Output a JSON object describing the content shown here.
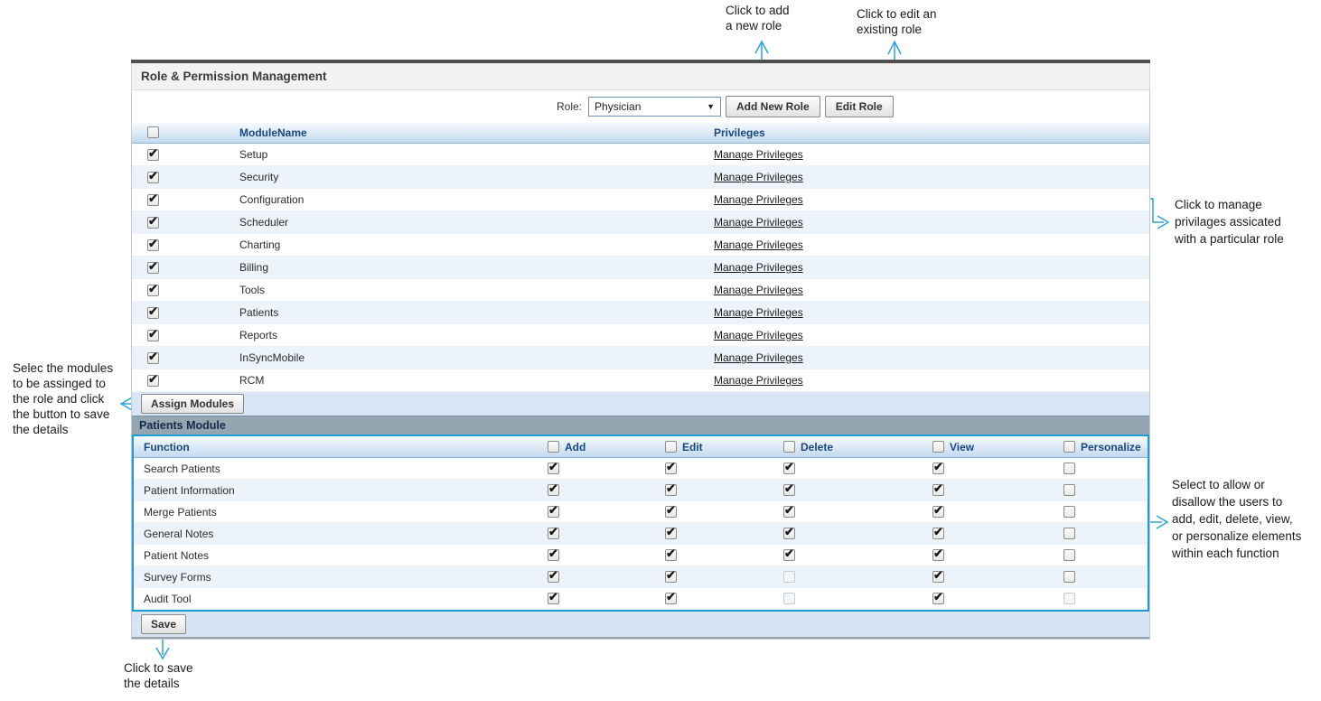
{
  "annotations": {
    "add_role": {
      "text": "Click to add\na new role"
    },
    "edit_role": {
      "text": "Click to edit an\nexisting role"
    },
    "manage": {
      "text": "Click to manage\nprivilages assicated\nwith a particular role"
    },
    "select_modules": {
      "text": "Selec the modules\nto be assinged to\nthe role and click\nthe button to save\nthe details"
    },
    "permissions": {
      "text": "Select to allow or\ndisallow the users to\nadd, edit, delete, view,\nor personalize elements\nwithin each function"
    },
    "save": {
      "text": "Click to save\nthe details"
    }
  },
  "panel": {
    "title": "Role & Permission Management",
    "toolbar": {
      "role_label": "Role:",
      "role_value": "Physician",
      "add_button": "Add New Role",
      "edit_button": "Edit Role"
    },
    "module_table": {
      "module_header": "ModuleName",
      "privileges_header": "Privileges",
      "link_label": "Manage Privileges",
      "header_checked": false,
      "rows": [
        {
          "name": "Setup",
          "checked": true
        },
        {
          "name": "Security",
          "checked": true
        },
        {
          "name": "Configuration",
          "checked": true
        },
        {
          "name": "Scheduler",
          "checked": true
        },
        {
          "name": "Charting",
          "checked": true
        },
        {
          "name": "Billing",
          "checked": true
        },
        {
          "name": "Tools",
          "checked": true
        },
        {
          "name": "Patients",
          "checked": true
        },
        {
          "name": "Reports",
          "checked": true
        },
        {
          "name": "InSyncMobile",
          "checked": true
        },
        {
          "name": "RCM",
          "checked": true
        }
      ]
    },
    "assign_button": "Assign Modules",
    "section_title": "Patients Module",
    "function_table": {
      "function_header": "Function",
      "columns": [
        "Add",
        "Edit",
        "Delete",
        "View",
        "Personalize"
      ],
      "header_checked": [
        false,
        false,
        false,
        false,
        false
      ],
      "rows": [
        {
          "name": "Search Patients",
          "states": [
            "checked",
            "checked",
            "checked",
            "checked",
            "unchecked"
          ]
        },
        {
          "name": "Patient Information",
          "states": [
            "checked",
            "checked",
            "checked",
            "checked",
            "unchecked"
          ]
        },
        {
          "name": "Merge Patients",
          "states": [
            "checked",
            "checked",
            "checked",
            "checked",
            "unchecked"
          ]
        },
        {
          "name": "General Notes",
          "states": [
            "checked",
            "checked",
            "checked",
            "checked",
            "unchecked"
          ]
        },
        {
          "name": "Patient Notes",
          "states": [
            "checked",
            "checked",
            "checked",
            "checked",
            "unchecked"
          ]
        },
        {
          "name": "Survey Forms",
          "states": [
            "checked",
            "checked",
            "disabled",
            "checked",
            "unchecked"
          ]
        },
        {
          "name": "Audit Tool",
          "states": [
            "checked",
            "checked",
            "disabled",
            "checked",
            "disabled"
          ]
        }
      ]
    },
    "save_button": "Save"
  },
  "colors": {
    "annotation_accent": "#2fa2d6",
    "highlight_border": "#1e9cd7",
    "header_text": "#17477e",
    "section_bar": "#93a6b1",
    "band": "#d8e5f5",
    "top_border": "#4f4f4f"
  }
}
